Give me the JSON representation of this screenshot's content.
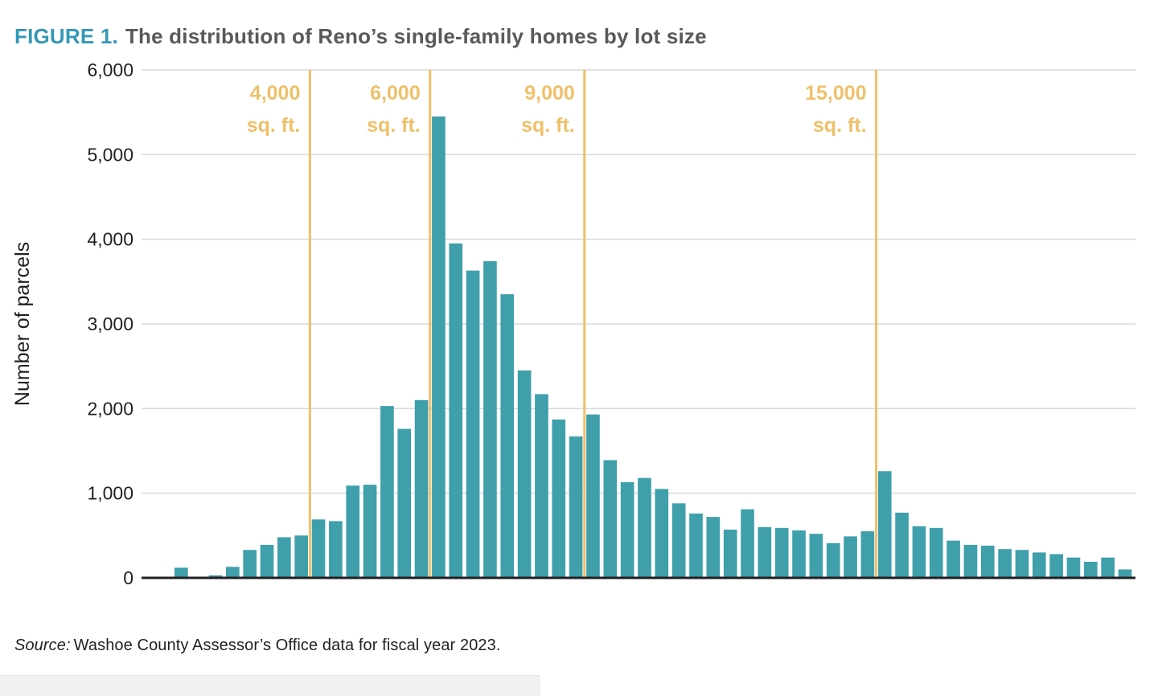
{
  "title": {
    "label": "FIGURE 1.",
    "text": "The distribution of Reno’s single-family homes by lot size"
  },
  "source": {
    "prefix": "Source:",
    "text": "Washoe County Assessor’s Office data for fiscal year 2023."
  },
  "colors": {
    "bar": "#3f9fab",
    "marker": "#efc06a",
    "grid": "#d9d9d9",
    "axis": "#231f20",
    "axis_text": "#231f20",
    "title_accent": "#3398b5",
    "title_text": "#58595b"
  },
  "chart_data": {
    "type": "bar",
    "title": "FIGURE 1. The distribution of Reno’s single-family homes by lot size",
    "xlabel": "",
    "ylabel": "Number of parcels",
    "ylim": [
      0,
      6000
    ],
    "y_ticks": [
      0,
      1000,
      2000,
      3000,
      4000,
      5000,
      6000
    ],
    "y_tick_labels": [
      "0",
      "1,000",
      "2,000",
      "3,000",
      "4,000",
      "5,000",
      "6,000"
    ],
    "grid": true,
    "legend": false,
    "x_axis_tick_labels_visible": false,
    "values": [
      120,
      0,
      30,
      130,
      330,
      390,
      480,
      500,
      690,
      670,
      1090,
      1100,
      2030,
      1760,
      2100,
      5450,
      3950,
      3630,
      3740,
      3350,
      2450,
      2170,
      1870,
      1670,
      1930,
      1390,
      1130,
      1180,
      1050,
      880,
      760,
      720,
      570,
      810,
      600,
      590,
      560,
      520,
      410,
      490,
      550,
      1260,
      770,
      610,
      590,
      440,
      390,
      380,
      340,
      330,
      300,
      280,
      240,
      190,
      240,
      100
    ],
    "markers": [
      {
        "lines": [
          "4,000",
          "sq. ft."
        ],
        "at_bar_index": 8
      },
      {
        "lines": [
          "6,000",
          "sq. ft."
        ],
        "at_bar_index": 15
      },
      {
        "lines": [
          "9,000",
          "sq. ft."
        ],
        "at_bar_index": 24
      },
      {
        "lines": [
          "15,000",
          "sq. ft."
        ],
        "at_bar_index": 41
      }
    ]
  }
}
